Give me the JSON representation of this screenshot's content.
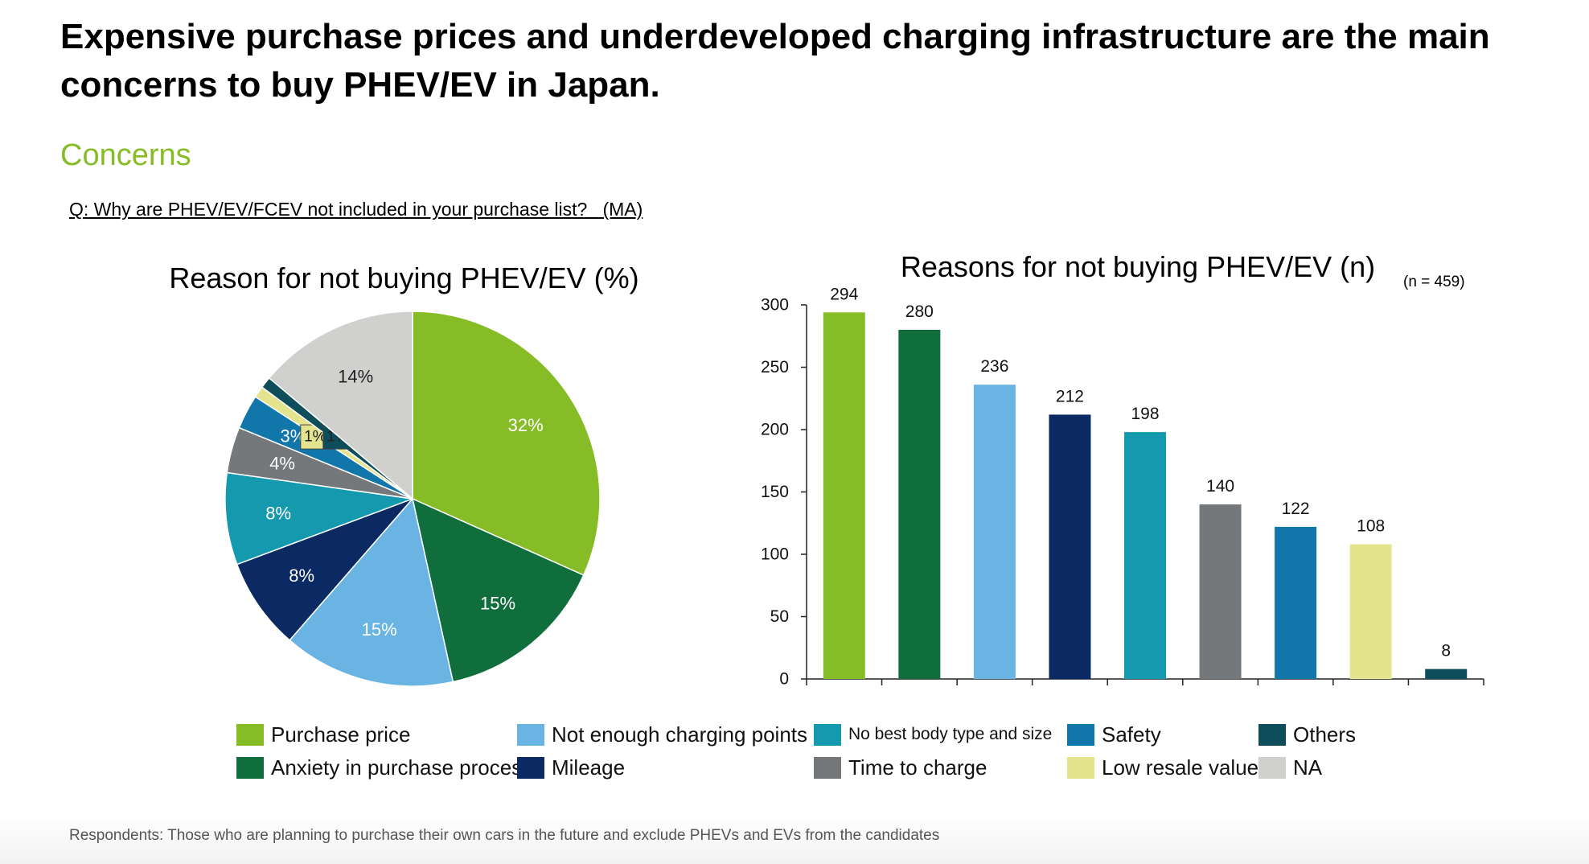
{
  "headline": "Expensive purchase prices and underdeveloped charging infrastructure are the main concerns to buy PHEV/EV in Japan.",
  "section_title": "Concerns",
  "question": "Q: Why are PHEV/EV/FCEV not included in your purchase list?   (MA)",
  "footnote": "Respondents: Those who are planning to purchase their own cars in the future and exclude PHEVs and EVs from the candidates",
  "chart_data": [
    {
      "type": "pie",
      "title": "Reason for not buying PHEV/EV (%)",
      "categories": [
        "Purchase price",
        "Anxiety in purchase process",
        "Not enough charging points",
        "Mileage",
        "No best body type and size",
        "Time to charge",
        "Safety",
        "Low resale value",
        "Others",
        "NA"
      ],
      "values": [
        32,
        15,
        15,
        8,
        8,
        4,
        3,
        1,
        1,
        14
      ],
      "labels": [
        "32%",
        "15%",
        "15%",
        "8%",
        "8%",
        "4%",
        "3%",
        "1%",
        "1%",
        "14%"
      ],
      "colors": [
        "#86bc25",
        "#0f6e3c",
        "#6ab4e4",
        "#0b2a63",
        "#1599ae",
        "#75787b",
        "#1176aa",
        "#e3e48d",
        "#0d4e5a",
        "#d0d0ce"
      ]
    },
    {
      "type": "bar",
      "title": "Reasons for not buying PHEV/EV (n)",
      "note": "(n = 459)",
      "categories": [
        "Purchase price",
        "Anxiety in purchase process",
        "Not enough charging points",
        "Mileage",
        "No best body type and size",
        "Time to charge",
        "Safety",
        "Low resale value",
        "Others"
      ],
      "values": [
        294,
        280,
        236,
        212,
        198,
        140,
        122,
        108,
        8
      ],
      "colors": [
        "#86bc25",
        "#0f6e3c",
        "#6ab4e4",
        "#0b2a63",
        "#1599ae",
        "#75787b",
        "#1176aa",
        "#e3e48d",
        "#0d4e5a"
      ],
      "ylim": [
        0,
        300
      ],
      "yticks": [
        0,
        50,
        100,
        150,
        200,
        250,
        300
      ],
      "grid": false
    }
  ],
  "legend": [
    {
      "label": "Purchase price",
      "color": "#86bc25"
    },
    {
      "label": "Anxiety in purchase process",
      "color": "#0f6e3c"
    },
    {
      "label": "Not enough charging points",
      "color": "#6ab4e4"
    },
    {
      "label": "Mileage",
      "color": "#0b2a63"
    },
    {
      "label": "No best body type and size",
      "color": "#1599ae"
    },
    {
      "label": "Time to charge",
      "color": "#75787b"
    },
    {
      "label": "Safety",
      "color": "#1176aa"
    },
    {
      "label": "Low resale value",
      "color": "#e3e48d"
    },
    {
      "label": "Others",
      "color": "#0d4e5a"
    },
    {
      "label": "NA",
      "color": "#d0d0ce"
    }
  ]
}
